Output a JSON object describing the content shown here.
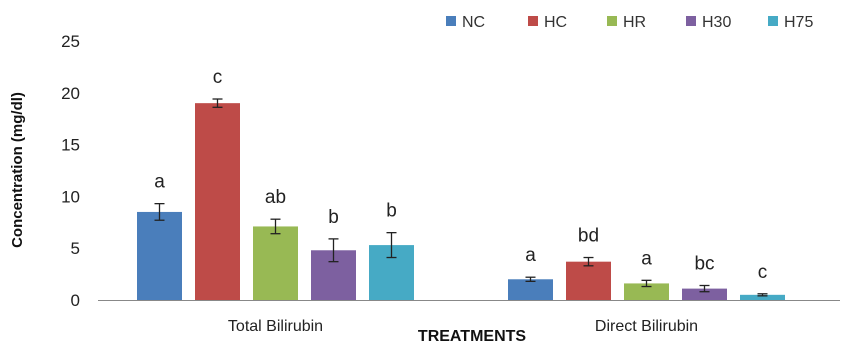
{
  "chart_data": {
    "type": "bar",
    "title": "",
    "xlabel": "TREATMENTS",
    "ylabel": "Concentration (mg/dl)",
    "ylim": [
      0,
      25
    ],
    "yticks": [
      "0",
      "5",
      "10",
      "15",
      "20",
      "25"
    ],
    "grid": false,
    "legend_position": "top-right",
    "categories": [
      "Total Bilirubin",
      "Direct Bilirubin"
    ],
    "series": [
      {
        "name": "NC",
        "color": "#4A7EBB",
        "values": [
          8.5,
          2.0
        ],
        "errors": [
          0.8,
          0.2
        ],
        "labels": [
          "a",
          "a"
        ]
      },
      {
        "name": "HC",
        "color": "#BE4B48",
        "values": [
          19.0,
          3.7
        ],
        "errors": [
          0.4,
          0.4
        ],
        "labels": [
          "c",
          "bd"
        ]
      },
      {
        "name": "HR",
        "color": "#98B954",
        "values": [
          7.1,
          1.6
        ],
        "errors": [
          0.7,
          0.3
        ],
        "labels": [
          "ab",
          "a"
        ]
      },
      {
        "name": "H30",
        "color": "#7D60A0",
        "values": [
          4.8,
          1.1
        ],
        "errors": [
          1.1,
          0.3
        ],
        "labels": [
          "b",
          "bc"
        ]
      },
      {
        "name": "H75",
        "color": "#46AAC5",
        "values": [
          5.3,
          0.5
        ],
        "errors": [
          1.2,
          0.1
        ],
        "labels": [
          "b",
          "c"
        ]
      }
    ]
  }
}
